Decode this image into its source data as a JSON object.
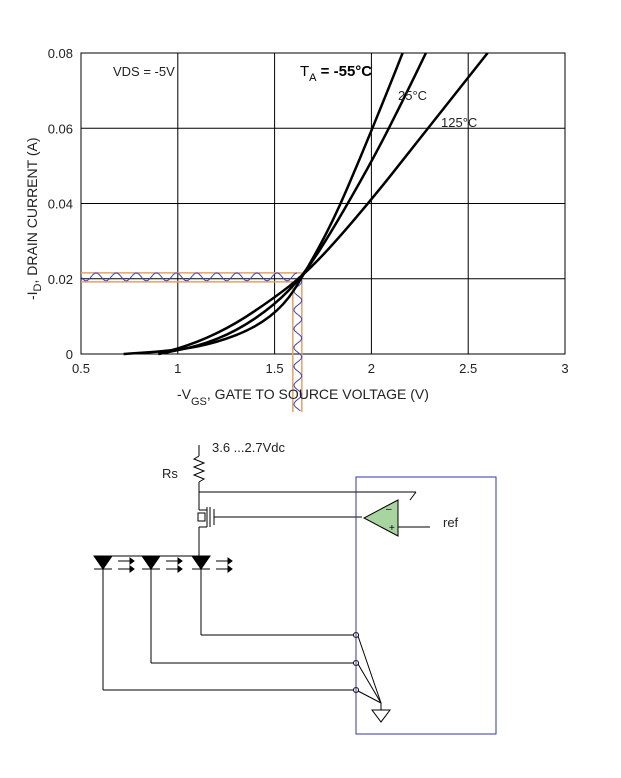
{
  "chart_data": {
    "type": "line",
    "xlabel": {
      "prefix": "-V",
      "sub": "GS",
      "rest": ", GATE TO SOURCE VOLTAGE (V)"
    },
    "ylabel": {
      "prefix": "-I",
      "sub": "D",
      "rest": ", DRAIN CURRENT (A)"
    },
    "xlim": [
      0.5,
      3
    ],
    "ylim": [
      0,
      0.08
    ],
    "xticks": [
      {
        "value": 0.5,
        "label": "0.5"
      },
      {
        "value": 1,
        "label": "1"
      },
      {
        "value": 1.5,
        "label": "1.5"
      },
      {
        "value": 2,
        "label": "2"
      },
      {
        "value": 2.5,
        "label": "2.5"
      },
      {
        "value": 3,
        "label": "3"
      }
    ],
    "yticks": [
      {
        "value": 0,
        "label": "0"
      },
      {
        "value": 0.02,
        "label": "0.02"
      },
      {
        "value": 0.04,
        "label": "0.04"
      },
      {
        "value": 0.06,
        "label": "0.06"
      },
      {
        "value": 0.08,
        "label": "0.08"
      }
    ],
    "grid": true,
    "series": [
      {
        "name": "-55°C",
        "x": [
          0.72,
          1.0,
          1.2,
          1.4,
          1.55,
          1.65,
          1.8,
          1.95,
          2.1,
          2.2
        ],
        "y": [
          0,
          0.001,
          0.003,
          0.007,
          0.013,
          0.021,
          0.035,
          0.053,
          0.072,
          0.085
        ]
      },
      {
        "name": "25°C",
        "x": [
          0.9,
          1.1,
          1.3,
          1.5,
          1.65,
          1.8,
          2.0,
          2.15,
          2.3
        ],
        "y": [
          0,
          0.002,
          0.006,
          0.013,
          0.021,
          0.033,
          0.051,
          0.066,
          0.082
        ]
      },
      {
        "name": "125°C",
        "x": [
          0.9,
          1.1,
          1.3,
          1.5,
          1.65,
          1.8,
          2.0,
          2.2,
          2.4,
          2.6
        ],
        "y": [
          0,
          0.003,
          0.008,
          0.015,
          0.021,
          0.029,
          0.041,
          0.054,
          0.067,
          0.08
        ]
      }
    ],
    "annotations": {
      "vds": "VDS = -5V",
      "ta_prefix": "T",
      "ta_sub": "A",
      "ta_rest": " = -55°C",
      "label_25": "25°C",
      "label_125": "125°C"
    },
    "highlight": {
      "vgs": 1.62,
      "id": 0.0205
    }
  },
  "circuit": {
    "supply_label": "3.6 ...2.7Vdc",
    "rs_label": "Rs",
    "ref_label": "ref",
    "opamp_minus": "–",
    "opamp_plus": "+"
  },
  "colors": {
    "curve": "#000000",
    "highlight": "#e8a060",
    "noise": "#3344cc",
    "opamp_fill": "#a8d4a0",
    "box": "#3333aa"
  }
}
